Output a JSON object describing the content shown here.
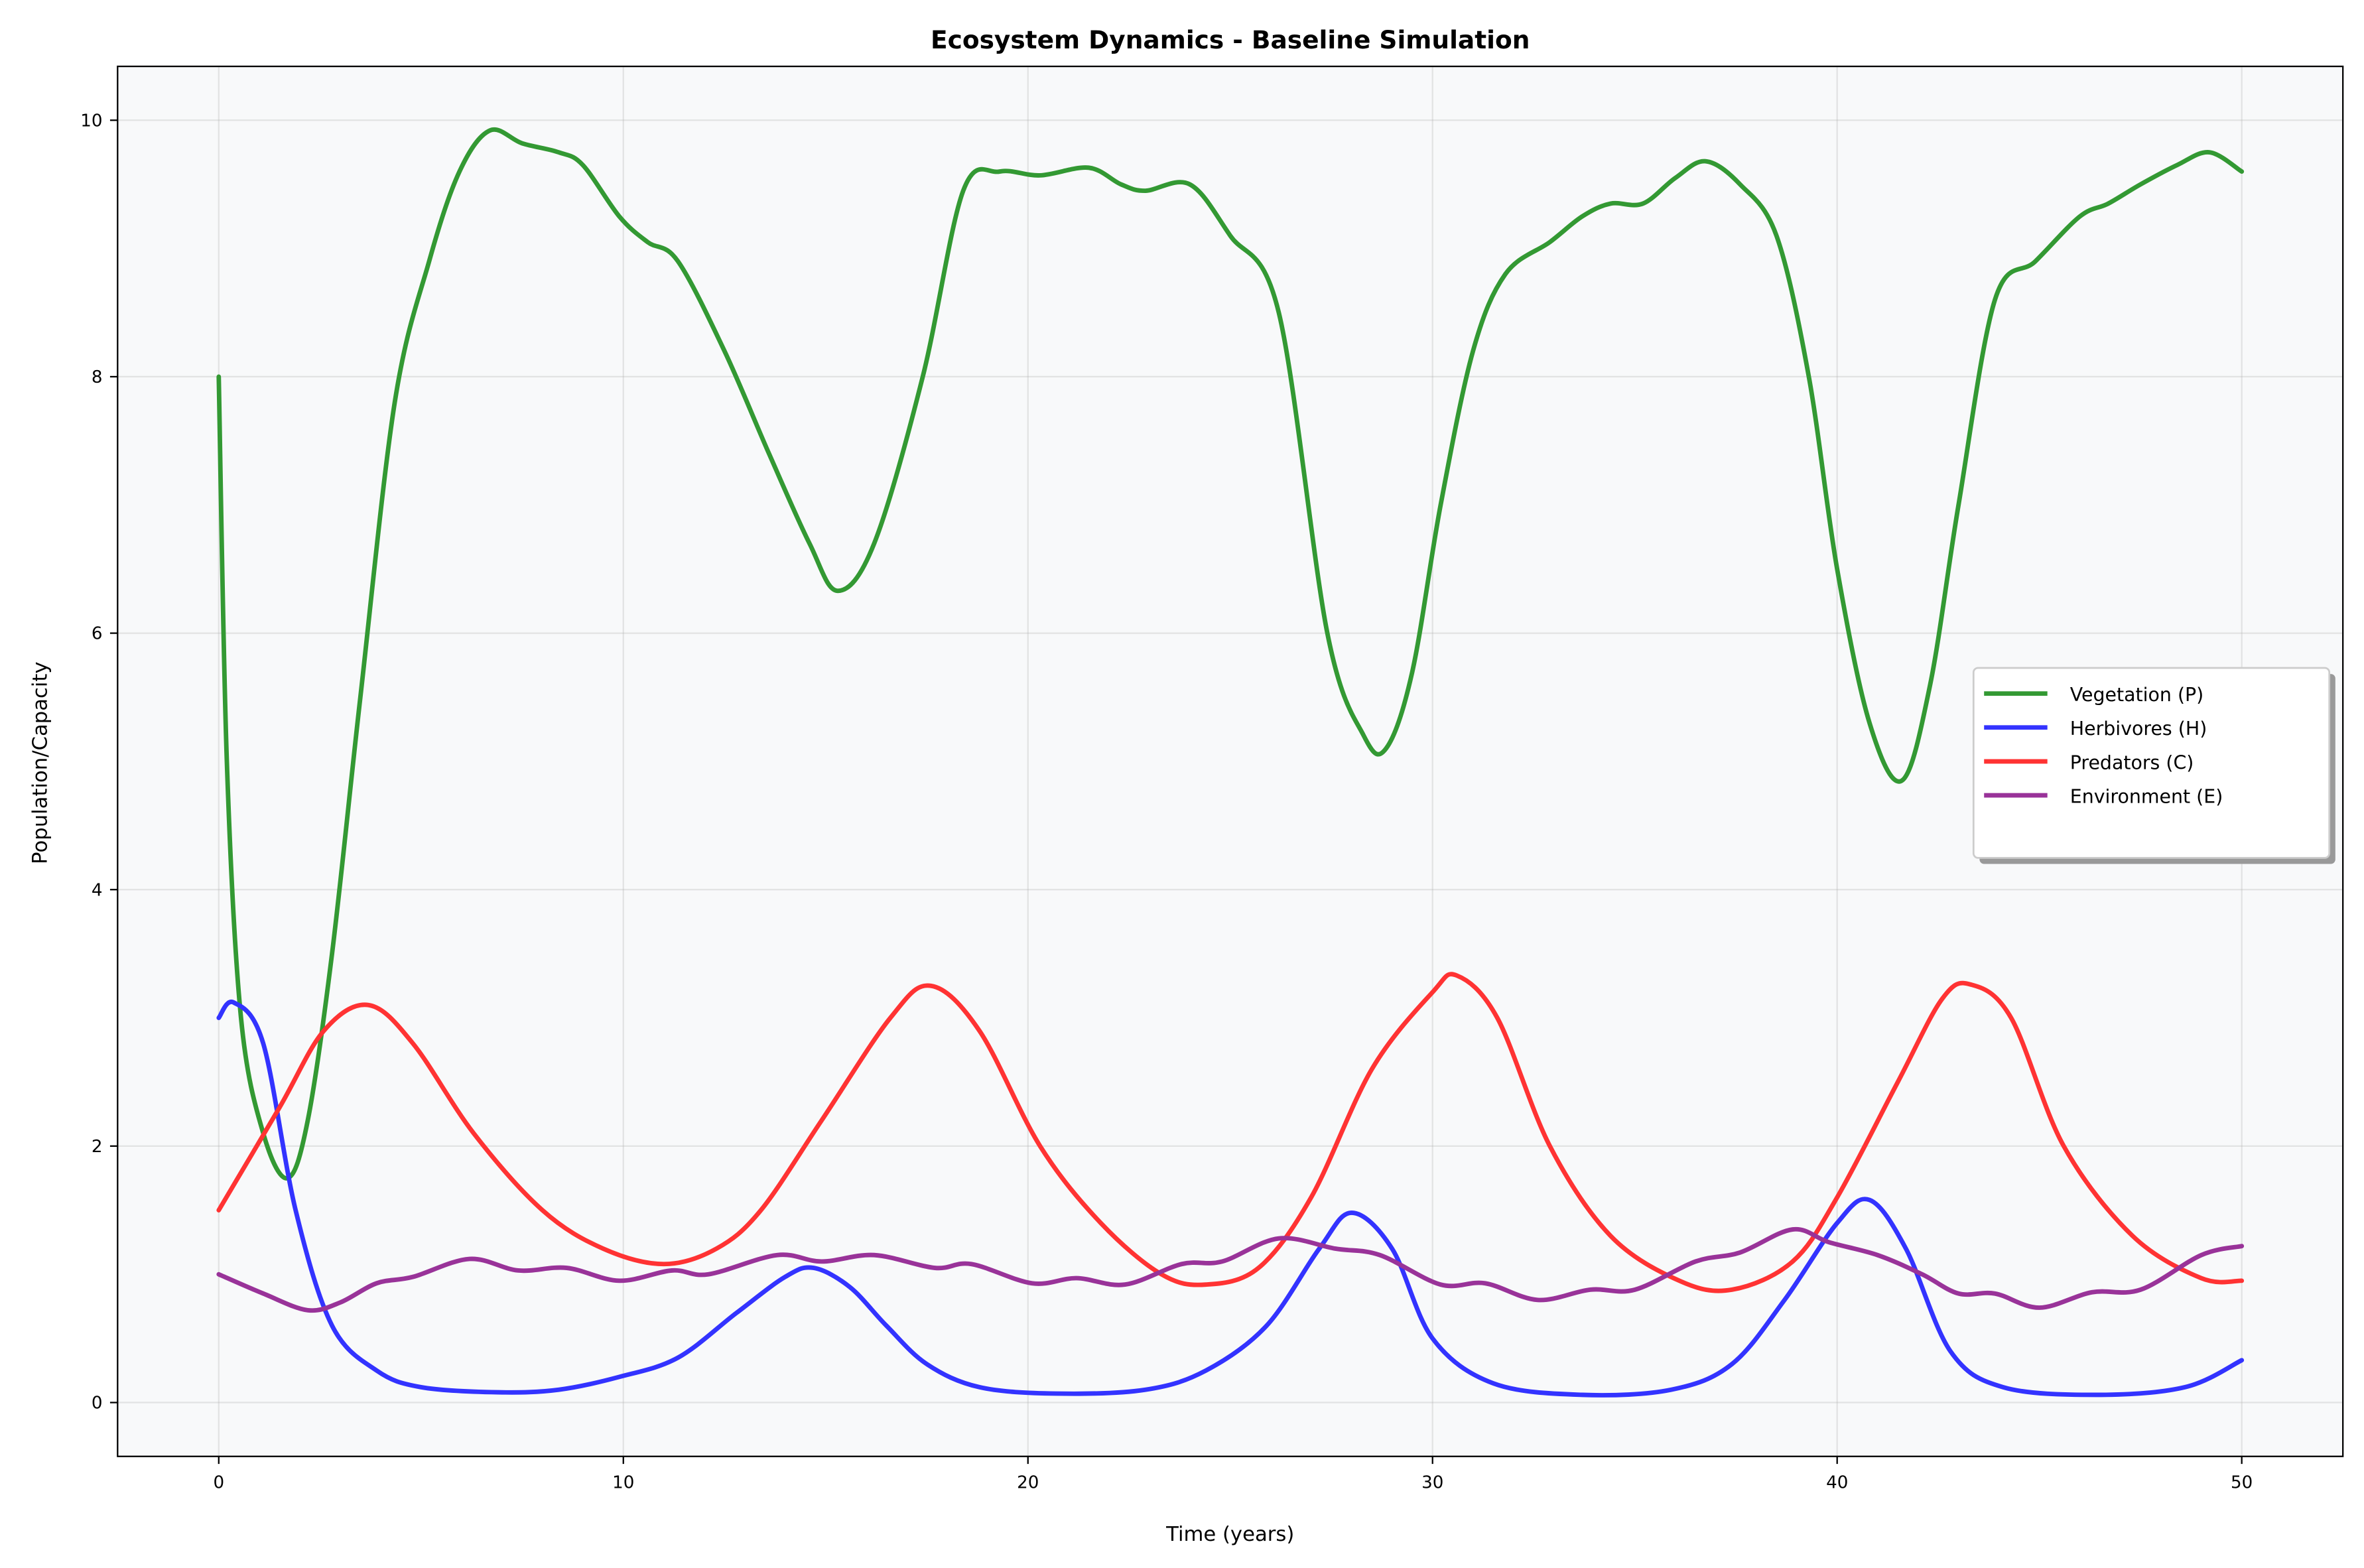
{
  "chart_data": {
    "type": "line",
    "title": "Ecosystem Dynamics - Baseline Simulation",
    "xlabel": "Time (years)",
    "ylabel": "Population/Capacity",
    "xlim": [
      -2.5,
      52.5
    ],
    "ylim": [
      -0.42,
      10.42
    ],
    "xticks": [
      0,
      10,
      20,
      30,
      40,
      50
    ],
    "yticks": [
      0,
      2,
      4,
      6,
      8,
      10
    ],
    "grid": true,
    "legend_position": "center-right",
    "background": "#f8f9fa",
    "series": [
      {
        "name": "Vegetation (P)",
        "color": "#339933",
        "x": [
          0,
          0.2,
          0.55,
          1.1,
          1.7,
          2.2,
          2.8,
          3.5,
          4.35,
          5.2,
          5.95,
          6.7,
          7.5,
          8.4,
          9.0,
          9.9,
          10.6,
          11.35,
          12.5,
          13.6,
          14.6,
          15.3,
          16.2,
          17.4,
          18.4,
          19.3,
          20.3,
          21.5,
          22.3,
          22.9,
          24.0,
          25.0,
          26.2,
          27.4,
          28.3,
          28.85,
          29.5,
          30.2,
          31.0,
          31.8,
          32.9,
          33.7,
          34.4,
          35.2,
          36.0,
          36.75,
          37.6,
          38.5,
          39.3,
          40.0,
          40.8,
          41.6,
          42.3,
          43.0,
          43.9,
          44.9,
          46.0,
          46.7,
          47.5,
          48.4,
          49.2,
          50
        ],
        "values": [
          8.0,
          5.0,
          3.0,
          2.1,
          1.75,
          2.2,
          3.5,
          5.5,
          7.8,
          8.9,
          9.6,
          9.92,
          9.82,
          9.75,
          9.65,
          9.25,
          9.05,
          8.9,
          8.2,
          7.4,
          6.7,
          6.33,
          6.7,
          8.0,
          9.45,
          9.6,
          9.57,
          9.63,
          9.5,
          9.45,
          9.5,
          9.1,
          8.5,
          6.0,
          5.2,
          5.1,
          5.7,
          7.0,
          8.2,
          8.8,
          9.05,
          9.25,
          9.35,
          9.35,
          9.55,
          9.68,
          9.5,
          9.1,
          8.0,
          6.5,
          5.3,
          4.85,
          5.6,
          7.0,
          8.6,
          8.9,
          9.25,
          9.35,
          9.5,
          9.65,
          9.75,
          9.6
        ]
      },
      {
        "name": "Herbivores (H)",
        "color": "#3333ff",
        "x": [
          0,
          0.37,
          1.1,
          1.9,
          2.8,
          3.9,
          5.0,
          6.9,
          8.4,
          9.9,
          11.35,
          12.8,
          14.0,
          14.7,
          15.6,
          16.5,
          17.5,
          18.8,
          20.7,
          22.9,
          24.4,
          25.9,
          27.2,
          28.0,
          29.0,
          30.0,
          31.5,
          33.7,
          35.9,
          37.4,
          38.7,
          40.0,
          40.8,
          41.7,
          42.8,
          44.1,
          46.4,
          48.6,
          50
        ],
        "values": [
          3.0,
          3.12,
          2.8,
          1.5,
          0.6,
          0.25,
          0.12,
          0.08,
          0.1,
          0.2,
          0.35,
          0.7,
          0.98,
          1.05,
          0.9,
          0.6,
          0.3,
          0.12,
          0.07,
          0.1,
          0.25,
          0.6,
          1.2,
          1.48,
          1.2,
          0.5,
          0.15,
          0.06,
          0.1,
          0.3,
          0.8,
          1.4,
          1.58,
          1.2,
          0.4,
          0.12,
          0.06,
          0.12,
          0.33
        ]
      },
      {
        "name": "Predators (C)",
        "color": "#ff3333",
        "x": [
          0,
          1.5,
          2.6,
          3.7,
          4.8,
          6.3,
          8.0,
          9.5,
          11.0,
          12.3,
          13.4,
          14.9,
          16.6,
          17.6,
          18.8,
          20.3,
          21.8,
          23.3,
          24.4,
          25.7,
          27.0,
          28.5,
          30.0,
          30.6,
          31.6,
          32.9,
          34.4,
          36.1,
          37.4,
          38.9,
          40.0,
          41.5,
          42.6,
          43.3,
          44.3,
          45.6,
          47.3,
          49.0,
          50
        ],
        "values": [
          1.5,
          2.3,
          2.9,
          3.1,
          2.8,
          2.1,
          1.5,
          1.2,
          1.08,
          1.2,
          1.5,
          2.2,
          3.0,
          3.25,
          2.9,
          2.0,
          1.4,
          1.0,
          0.92,
          1.05,
          1.6,
          2.6,
          3.2,
          3.33,
          3.0,
          2.0,
          1.3,
          0.95,
          0.88,
          1.1,
          1.6,
          2.5,
          3.15,
          3.26,
          3.0,
          2.0,
          1.3,
          0.97,
          0.95
        ]
      },
      {
        "name": "Environment (E)",
        "color": "#993399",
        "x": [
          0,
          1.1,
          2.2,
          3.0,
          3.9,
          4.8,
          6.2,
          7.4,
          8.6,
          9.9,
          11.2,
          12.1,
          13.8,
          14.9,
          16.2,
          17.7,
          18.6,
          20.1,
          21.2,
          22.4,
          23.8,
          24.8,
          26.2,
          27.6,
          28.7,
          30.2,
          31.3,
          32.6,
          33.9,
          35.0,
          36.5,
          37.6,
          38.9,
          39.8,
          41.0,
          42.1,
          43.0,
          43.9,
          45.0,
          46.3,
          47.5,
          49.0,
          50
        ],
        "values": [
          1.0,
          0.85,
          0.72,
          0.78,
          0.93,
          0.98,
          1.12,
          1.03,
          1.05,
          0.95,
          1.03,
          1.0,
          1.15,
          1.1,
          1.15,
          1.05,
          1.08,
          0.93,
          0.97,
          0.92,
          1.08,
          1.1,
          1.28,
          1.2,
          1.15,
          0.92,
          0.93,
          0.8,
          0.88,
          0.88,
          1.1,
          1.17,
          1.35,
          1.25,
          1.15,
          1.0,
          0.85,
          0.85,
          0.74,
          0.86,
          0.88,
          1.15,
          1.22
        ]
      }
    ]
  }
}
